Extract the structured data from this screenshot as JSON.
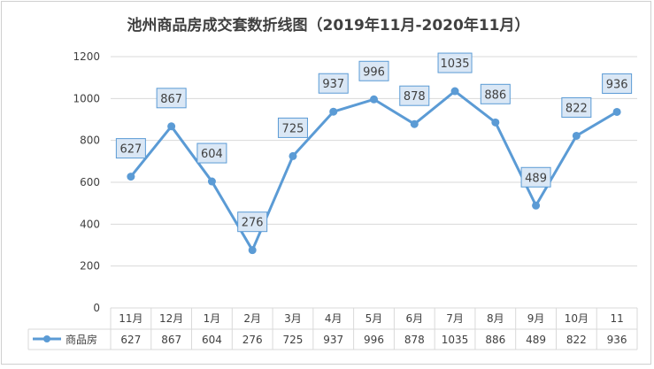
{
  "chart_data": {
    "type": "line",
    "title": "池州商品房成交套数折线图（2019年11月-2020年11月）",
    "categories": [
      "11月",
      "12月",
      "1月",
      "2月",
      "3月",
      "4月",
      "5月",
      "6月",
      "7月",
      "8月",
      "9月",
      "10月",
      "11"
    ],
    "series": [
      {
        "name": "商品房",
        "values": [
          627,
          867,
          604,
          276,
          725,
          937,
          996,
          878,
          1035,
          886,
          489,
          822,
          936
        ],
        "data_labels": [
          "627",
          "867",
          "604",
          "276",
          "725",
          "937",
          "996",
          "878",
          "1035",
          "886",
          "489",
          "822",
          "936"
        ]
      }
    ],
    "ylim": [
      0,
      1200
    ],
    "yticks": [
      "0",
      "200",
      "400",
      "600",
      "800",
      "1000",
      "1200"
    ],
    "grid": true,
    "legend": "data-table",
    "colors": {
      "line": "#5b9bd5",
      "label_fill": "#dae7f5",
      "label_border": "#5b9bd5",
      "grid": "#d9d9d9",
      "text": "#404040"
    }
  }
}
